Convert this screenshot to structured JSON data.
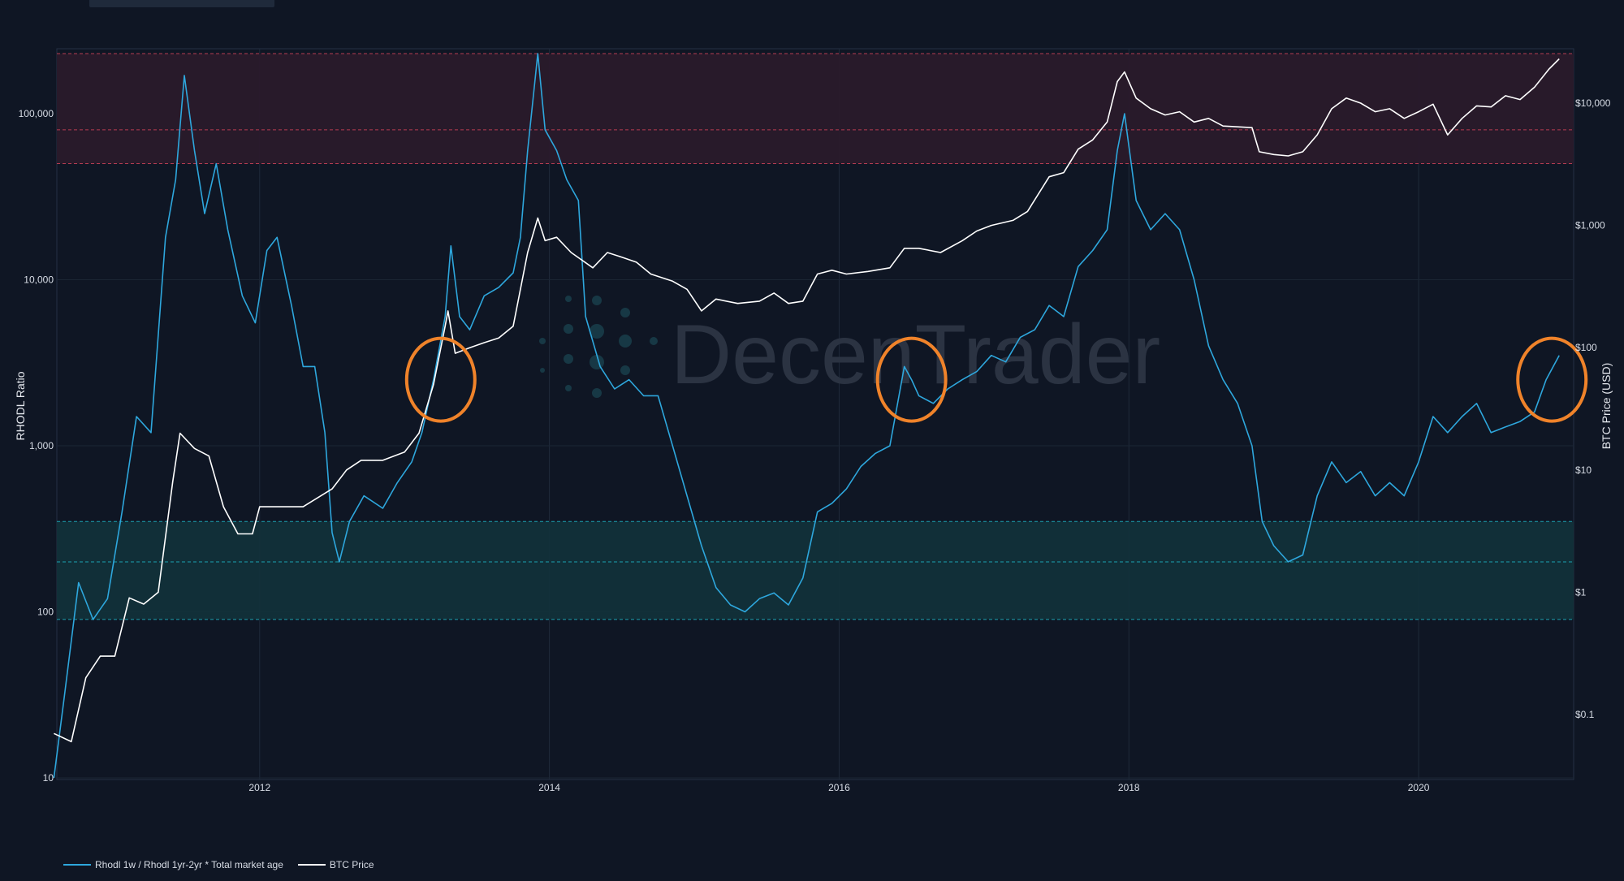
{
  "chart_data": {
    "type": "line",
    "watermark": "DecenTrader",
    "x_ticks": [
      "2012",
      "2014",
      "2016",
      "2018",
      "2020"
    ],
    "left_axis": {
      "label": "RHODL Ratio",
      "scale": "log",
      "ticks": [
        "10",
        "100",
        "1,000",
        "10,000",
        "100,000"
      ]
    },
    "right_axis": {
      "label": "BTC Price (USD)",
      "scale": "log",
      "ticks": [
        "$0.1",
        "$1",
        "$10",
        "$100",
        "$1,000",
        "$10,000"
      ]
    },
    "bands": [
      {
        "zone": "top",
        "from": 50000,
        "to": 230000,
        "lines": [
          50000,
          80000,
          230000
        ],
        "color": "#2a1a2b",
        "line_color": "#d0435a"
      },
      {
        "zone": "bottom",
        "from": 90,
        "to": 350,
        "lines": [
          90,
          200,
          350
        ],
        "color": "#12303a",
        "line_color": "#1fb5c6"
      }
    ],
    "highlight_circles": [
      {
        "date": 2013.25,
        "rhodl": 2500
      },
      {
        "date": 2016.5,
        "rhodl": 2500
      },
      {
        "date": 2020.92,
        "rhodl": 2500
      }
    ],
    "series": [
      {
        "name": "Rhodl 1w / Rhodl 1yr-2yr * Total market age",
        "axis": "left",
        "color": "#2ea7dd",
        "points": [
          [
            2010.58,
            10
          ],
          [
            2010.65,
            30
          ],
          [
            2010.75,
            150
          ],
          [
            2010.85,
            90
          ],
          [
            2010.95,
            120
          ],
          [
            2011.05,
            400
          ],
          [
            2011.15,
            1500
          ],
          [
            2011.25,
            1200
          ],
          [
            2011.35,
            18000
          ],
          [
            2011.42,
            40000
          ],
          [
            2011.48,
            170000
          ],
          [
            2011.55,
            60000
          ],
          [
            2011.62,
            25000
          ],
          [
            2011.7,
            50000
          ],
          [
            2011.78,
            20000
          ],
          [
            2011.88,
            8000
          ],
          [
            2011.97,
            5500
          ],
          [
            2012.05,
            15000
          ],
          [
            2012.12,
            18000
          ],
          [
            2012.22,
            7000
          ],
          [
            2012.3,
            3000
          ],
          [
            2012.38,
            3000
          ],
          [
            2012.45,
            1200
          ],
          [
            2012.5,
            300
          ],
          [
            2012.55,
            200
          ],
          [
            2012.62,
            350
          ],
          [
            2012.72,
            500
          ],
          [
            2012.85,
            420
          ],
          [
            2012.95,
            600
          ],
          [
            2013.05,
            800
          ],
          [
            2013.12,
            1200
          ],
          [
            2013.2,
            2500
          ],
          [
            2013.28,
            6000
          ],
          [
            2013.32,
            16000
          ],
          [
            2013.38,
            6000
          ],
          [
            2013.45,
            5000
          ],
          [
            2013.55,
            8000
          ],
          [
            2013.65,
            9000
          ],
          [
            2013.75,
            11000
          ],
          [
            2013.8,
            18000
          ],
          [
            2013.85,
            60000
          ],
          [
            2013.92,
            230000
          ],
          [
            2013.97,
            80000
          ],
          [
            2014.05,
            60000
          ],
          [
            2014.12,
            40000
          ],
          [
            2014.2,
            30000
          ],
          [
            2014.25,
            6000
          ],
          [
            2014.35,
            3000
          ],
          [
            2014.45,
            2200
          ],
          [
            2014.55,
            2500
          ],
          [
            2014.65,
            2000
          ],
          [
            2014.75,
            2000
          ],
          [
            2014.85,
            1000
          ],
          [
            2014.95,
            500
          ],
          [
            2015.05,
            250
          ],
          [
            2015.15,
            140
          ],
          [
            2015.25,
            110
          ],
          [
            2015.35,
            100
          ],
          [
            2015.45,
            120
          ],
          [
            2015.55,
            130
          ],
          [
            2015.65,
            110
          ],
          [
            2015.75,
            160
          ],
          [
            2015.85,
            400
          ],
          [
            2015.95,
            450
          ],
          [
            2016.05,
            550
          ],
          [
            2016.15,
            750
          ],
          [
            2016.25,
            900
          ],
          [
            2016.35,
            1000
          ],
          [
            2016.45,
            3000
          ],
          [
            2016.5,
            2500
          ],
          [
            2016.55,
            2000
          ],
          [
            2016.65,
            1800
          ],
          [
            2016.75,
            2200
          ],
          [
            2016.85,
            2500
          ],
          [
            2016.95,
            2800
          ],
          [
            2017.05,
            3500
          ],
          [
            2017.15,
            3200
          ],
          [
            2017.25,
            4500
          ],
          [
            2017.35,
            5000
          ],
          [
            2017.45,
            7000
          ],
          [
            2017.55,
            6000
          ],
          [
            2017.65,
            12000
          ],
          [
            2017.75,
            15000
          ],
          [
            2017.85,
            20000
          ],
          [
            2017.92,
            60000
          ],
          [
            2017.97,
            100000
          ],
          [
            2018.05,
            30000
          ],
          [
            2018.15,
            20000
          ],
          [
            2018.25,
            25000
          ],
          [
            2018.35,
            20000
          ],
          [
            2018.45,
            10000
          ],
          [
            2018.55,
            4000
          ],
          [
            2018.65,
            2500
          ],
          [
            2018.75,
            1800
          ],
          [
            2018.85,
            1000
          ],
          [
            2018.92,
            350
          ],
          [
            2019.0,
            250
          ],
          [
            2019.1,
            200
          ],
          [
            2019.2,
            220
          ],
          [
            2019.3,
            500
          ],
          [
            2019.4,
            800
          ],
          [
            2019.5,
            600
          ],
          [
            2019.6,
            700
          ],
          [
            2019.7,
            500
          ],
          [
            2019.8,
            600
          ],
          [
            2019.9,
            500
          ],
          [
            2020.0,
            800
          ],
          [
            2020.1,
            1500
          ],
          [
            2020.2,
            1200
          ],
          [
            2020.3,
            1500
          ],
          [
            2020.4,
            1800
          ],
          [
            2020.5,
            1200
          ],
          [
            2020.6,
            1300
          ],
          [
            2020.7,
            1400
          ],
          [
            2020.8,
            1600
          ],
          [
            2020.88,
            2500
          ],
          [
            2020.97,
            3500
          ]
        ]
      },
      {
        "name": "BTC Price",
        "axis": "right",
        "color": "#ffffff",
        "points": [
          [
            2010.58,
            0.07
          ],
          [
            2010.7,
            0.06
          ],
          [
            2010.8,
            0.2
          ],
          [
            2010.9,
            0.3
          ],
          [
            2011.0,
            0.3
          ],
          [
            2011.1,
            0.9
          ],
          [
            2011.2,
            0.8
          ],
          [
            2011.3,
            1.0
          ],
          [
            2011.4,
            8
          ],
          [
            2011.45,
            20
          ],
          [
            2011.55,
            15
          ],
          [
            2011.65,
            13
          ],
          [
            2011.75,
            5
          ],
          [
            2011.85,
            3
          ],
          [
            2011.95,
            3
          ],
          [
            2012.0,
            5
          ],
          [
            2012.1,
            5
          ],
          [
            2012.3,
            5
          ],
          [
            2012.5,
            7
          ],
          [
            2012.6,
            10
          ],
          [
            2012.7,
            12
          ],
          [
            2012.85,
            12
          ],
          [
            2013.0,
            14
          ],
          [
            2013.1,
            20
          ],
          [
            2013.2,
            50
          ],
          [
            2013.28,
            150
          ],
          [
            2013.3,
            200
          ],
          [
            2013.35,
            90
          ],
          [
            2013.45,
            100
          ],
          [
            2013.55,
            110
          ],
          [
            2013.65,
            120
          ],
          [
            2013.75,
            150
          ],
          [
            2013.85,
            600
          ],
          [
            2013.92,
            1150
          ],
          [
            2013.97,
            750
          ],
          [
            2014.05,
            800
          ],
          [
            2014.15,
            600
          ],
          [
            2014.3,
            450
          ],
          [
            2014.4,
            600
          ],
          [
            2014.5,
            550
          ],
          [
            2014.6,
            500
          ],
          [
            2014.7,
            400
          ],
          [
            2014.85,
            350
          ],
          [
            2014.95,
            300
          ],
          [
            2015.05,
            200
          ],
          [
            2015.15,
            250
          ],
          [
            2015.3,
            230
          ],
          [
            2015.45,
            240
          ],
          [
            2015.55,
            280
          ],
          [
            2015.65,
            230
          ],
          [
            2015.75,
            240
          ],
          [
            2015.85,
            400
          ],
          [
            2015.95,
            430
          ],
          [
            2016.05,
            400
          ],
          [
            2016.2,
            420
          ],
          [
            2016.35,
            450
          ],
          [
            2016.45,
            650
          ],
          [
            2016.55,
            650
          ],
          [
            2016.7,
            600
          ],
          [
            2016.85,
            750
          ],
          [
            2016.95,
            900
          ],
          [
            2017.05,
            1000
          ],
          [
            2017.2,
            1100
          ],
          [
            2017.3,
            1300
          ],
          [
            2017.45,
            2500
          ],
          [
            2017.55,
            2700
          ],
          [
            2017.65,
            4200
          ],
          [
            2017.75,
            5000
          ],
          [
            2017.85,
            7000
          ],
          [
            2017.92,
            15000
          ],
          [
            2017.97,
            18000
          ],
          [
            2018.05,
            11000
          ],
          [
            2018.15,
            9000
          ],
          [
            2018.25,
            8000
          ],
          [
            2018.35,
            8500
          ],
          [
            2018.45,
            7000
          ],
          [
            2018.55,
            7500
          ],
          [
            2018.65,
            6500
          ],
          [
            2018.75,
            6400
          ],
          [
            2018.85,
            6300
          ],
          [
            2018.9,
            4000
          ],
          [
            2019.0,
            3800
          ],
          [
            2019.1,
            3700
          ],
          [
            2019.2,
            4000
          ],
          [
            2019.3,
            5500
          ],
          [
            2019.4,
            9000
          ],
          [
            2019.5,
            11000
          ],
          [
            2019.6,
            10000
          ],
          [
            2019.7,
            8500
          ],
          [
            2019.8,
            9000
          ],
          [
            2019.9,
            7500
          ],
          [
            2020.0,
            8500
          ],
          [
            2020.1,
            9800
          ],
          [
            2020.2,
            5500
          ],
          [
            2020.3,
            7500
          ],
          [
            2020.4,
            9500
          ],
          [
            2020.5,
            9300
          ],
          [
            2020.6,
            11500
          ],
          [
            2020.7,
            10700
          ],
          [
            2020.8,
            13500
          ],
          [
            2020.9,
            19000
          ],
          [
            2020.97,
            23000
          ]
        ]
      }
    ]
  },
  "legend": {
    "items": [
      {
        "label": "Rhodl 1w / Rhodl 1yr-2yr * Total market age",
        "color": "#2ea7dd"
      },
      {
        "label": "BTC Price",
        "color": "#ffffff"
      }
    ]
  }
}
